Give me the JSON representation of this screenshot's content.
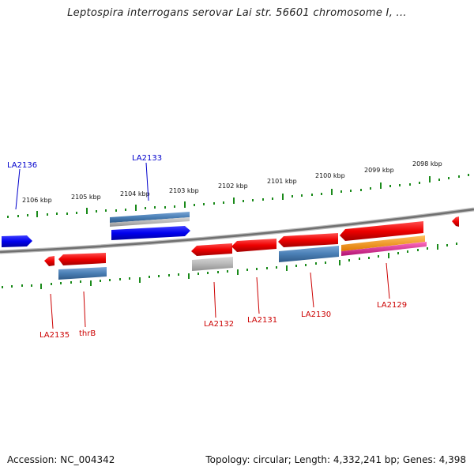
{
  "title": "Leptospira interrogans serovar Lai str. 56601 chromosome I, ...",
  "accession": "Accession: NC_004342",
  "topology": "Topology: circular; Length: 4,332,241 bp; Genes: 4,398",
  "colors": {
    "forward_label": "#0000cc",
    "reverse_label": "#cc0000",
    "blue_gene": "#0000ee",
    "red_gene": "#ee0000",
    "steel_feature": "#4a7fb5",
    "grey_feature": "#b8b8b8",
    "orange_feature": "#ff9900",
    "magenta_feature": "#e0309a",
    "tick": "#1a8a1a",
    "backbone": "#808080"
  },
  "scale_ticks": [
    "2106 kbp",
    "2105 kbp",
    "2104 kbp",
    "2103 kbp",
    "2102 kbp",
    "2101 kbp",
    "2100 kbp",
    "2099 kbp",
    "2098 kbp"
  ],
  "gene_labels": {
    "LA2136": "LA2136",
    "LA2133": "LA2133",
    "LA2135": "LA2135",
    "thrB": "thrB",
    "LA2132": "LA2132",
    "LA2131": "LA2131",
    "LA2130": "LA2130",
    "LA2129": "LA2129"
  }
}
